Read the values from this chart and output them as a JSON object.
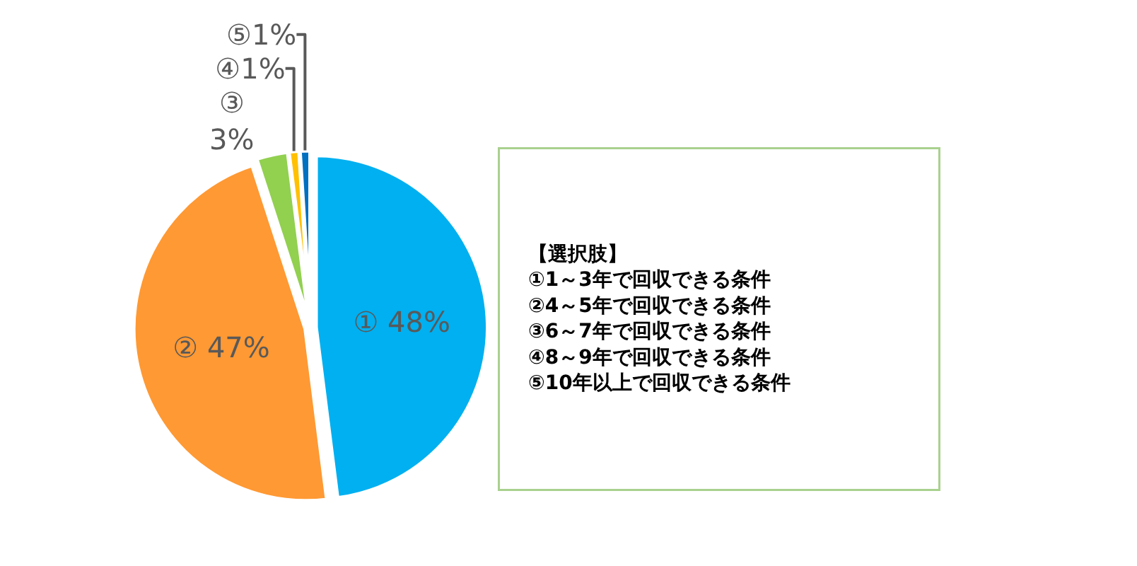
{
  "chart_data": {
    "type": "pie",
    "categories": [
      "①",
      "②",
      "③",
      "④",
      "⑤"
    ],
    "values": [
      48,
      47,
      3,
      1,
      1
    ],
    "colors": [
      "#00b0f0",
      "#ff9933",
      "#92d050",
      "#ffc000",
      "#0070c0"
    ],
    "value_labels": [
      "48%",
      "47%",
      "3%",
      "1%",
      "1%"
    ],
    "legend": false,
    "annotations": [
      "【選択肢】",
      "①1～3年で回収できる条件",
      "②4～5年で回収できる条件",
      "③6～7年で回収できる条件",
      "④8～9年で回収できる条件",
      "⑤10年以上で回収できる条件"
    ]
  }
}
